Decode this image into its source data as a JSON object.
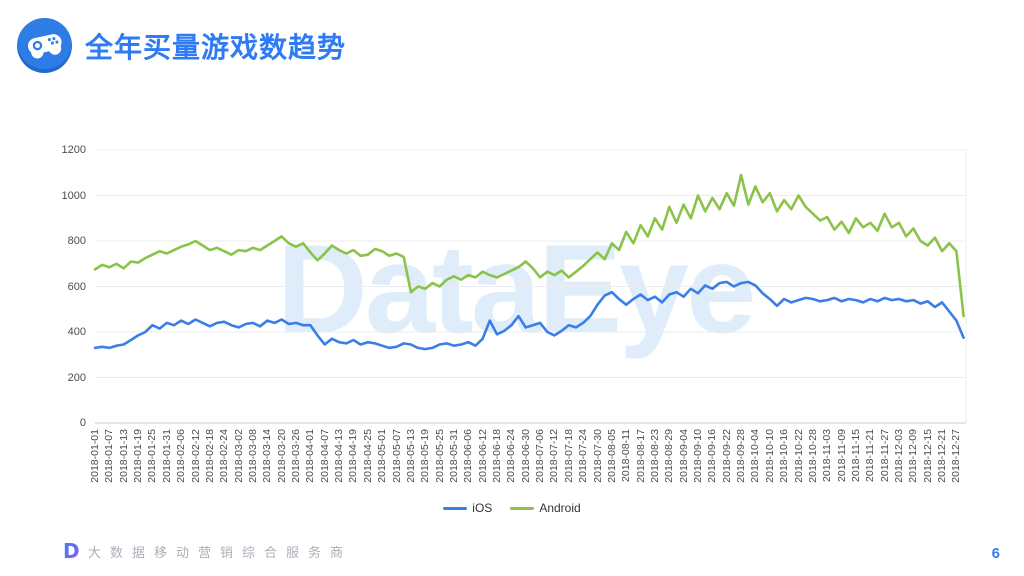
{
  "header": {
    "title": "全年买量游戏数趋势"
  },
  "watermark": "DataEye",
  "colors": {
    "accent": "#2f7bf5",
    "ios_line": "#3b7ee8",
    "android_line": "#8bc34a",
    "watermark": "#2e8ee8",
    "page_number": "#3a7af0",
    "gridline": "#e9ecf0",
    "axis_line": "#c9ced4"
  },
  "legend": [
    {
      "label": "iOS",
      "color": "#3b7ee8"
    },
    {
      "label": "Android",
      "color": "#8bc34a"
    }
  ],
  "footer": {
    "logo_letter": "D",
    "slogan": "大数据移动营销综合服务商",
    "page_number": "6"
  },
  "chart_data": {
    "type": "line",
    "title": "全年买量游戏数趋势",
    "ylabel": "",
    "xlabel": "",
    "ylim": [
      0,
      1200
    ],
    "y_ticks": [
      0,
      200,
      400,
      600,
      800,
      1000,
      1200
    ],
    "grid": true,
    "legend_position": "bottom",
    "x_tick_labels": [
      "2018-01-01",
      "2018-01-07",
      "2018-01-13",
      "2018-01-19",
      "2018-01-25",
      "2018-01-31",
      "2018-02-06",
      "2018-02-12",
      "2018-02-18",
      "2018-02-24",
      "2018-03-02",
      "2018-03-08",
      "2018-03-14",
      "2018-03-20",
      "2018-03-26",
      "2018-04-01",
      "2018-04-07",
      "2018-04-13",
      "2018-04-19",
      "2018-04-25",
      "2018-05-01",
      "2018-05-07",
      "2018-05-13",
      "2018-05-19",
      "2018-05-25",
      "2018-05-31",
      "2018-06-06",
      "2018-06-12",
      "2018-06-18",
      "2018-06-24",
      "2018-06-30",
      "2018-07-06",
      "2018-07-12",
      "2018-07-18",
      "2018-07-24",
      "2018-07-30",
      "2018-08-05",
      "2018-08-11",
      "2018-08-17",
      "2018-08-23",
      "2018-08-29",
      "2018-09-04",
      "2018-09-10",
      "2018-09-16",
      "2018-09-22",
      "2018-09-28",
      "2018-10-04",
      "2018-10-10",
      "2018-10-16",
      "2018-10-22",
      "2018-10-28",
      "2018-11-03",
      "2018-11-09",
      "2018-11-15",
      "2018-11-21",
      "2018-11-27",
      "2018-12-03",
      "2018-12-09",
      "2018-12-15",
      "2018-12-21",
      "2018-12-27"
    ],
    "x_tick_step_days": 6,
    "sample_step_days": 3,
    "x_span_days": 364,
    "series": [
      {
        "name": "iOS",
        "color": "#3b7ee8",
        "values": [
          330,
          335,
          330,
          340,
          345,
          365,
          385,
          400,
          430,
          415,
          440,
          430,
          450,
          435,
          455,
          440,
          425,
          440,
          445,
          430,
          420,
          435,
          440,
          425,
          450,
          440,
          455,
          435,
          440,
          430,
          430,
          385,
          345,
          370,
          355,
          350,
          365,
          345,
          355,
          350,
          340,
          330,
          335,
          350,
          345,
          330,
          325,
          330,
          345,
          350,
          340,
          345,
          355,
          340,
          370,
          450,
          390,
          405,
          430,
          470,
          420,
          430,
          440,
          400,
          385,
          405,
          430,
          420,
          440,
          470,
          520,
          560,
          575,
          545,
          520,
          545,
          565,
          540,
          555,
          530,
          565,
          575,
          555,
          590,
          570,
          605,
          590,
          615,
          620,
          600,
          615,
          620,
          605,
          570,
          545,
          515,
          545,
          530,
          540,
          550,
          545,
          535,
          540,
          550,
          535,
          545,
          540,
          530,
          545,
          535,
          550,
          540,
          545,
          535,
          540,
          525,
          535,
          510,
          530,
          490,
          450,
          375
        ]
      },
      {
        "name": "Android",
        "color": "#8bc34a",
        "values": [
          675,
          695,
          685,
          700,
          680,
          710,
          705,
          725,
          740,
          755,
          745,
          760,
          775,
          785,
          800,
          780,
          760,
          770,
          755,
          740,
          760,
          755,
          770,
          760,
          780,
          800,
          820,
          790,
          775,
          790,
          750,
          715,
          745,
          780,
          760,
          745,
          760,
          735,
          740,
          765,
          755,
          735,
          745,
          730,
          575,
          600,
          590,
          615,
          600,
          630,
          645,
          630,
          650,
          640,
          665,
          650,
          640,
          655,
          670,
          685,
          710,
          680,
          640,
          665,
          650,
          670,
          640,
          665,
          690,
          720,
          750,
          720,
          790,
          760,
          840,
          790,
          870,
          820,
          900,
          850,
          950,
          880,
          960,
          900,
          1000,
          930,
          990,
          940,
          1010,
          955,
          1090,
          960,
          1040,
          970,
          1010,
          930,
          980,
          940,
          1000,
          950,
          920,
          890,
          905,
          850,
          885,
          835,
          900,
          860,
          880,
          845,
          920,
          860,
          880,
          820,
          855,
          800,
          780,
          815,
          755,
          790,
          755,
          470
        ]
      }
    ]
  }
}
